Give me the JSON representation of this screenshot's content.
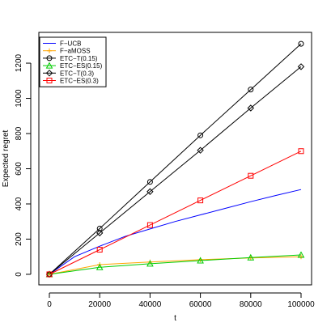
{
  "chart_data": {
    "type": "line",
    "xlabel": "t",
    "ylabel": "Expected regret",
    "xlim": [
      0,
      100000
    ],
    "ylim": [
      0,
      1300
    ],
    "x_ticks": [
      0,
      20000,
      40000,
      60000,
      80000,
      100000
    ],
    "y_ticks": [
      0,
      200,
      400,
      600,
      800,
      1000,
      1200
    ],
    "legend_position": "top-left",
    "series": [
      {
        "name": "F−UCB",
        "color": "#0000ff",
        "marker": "none",
        "x": [
          0,
          10000,
          20000,
          30000,
          40000,
          50000,
          60000,
          70000,
          80000,
          90000,
          100000
        ],
        "values": [
          0,
          100,
          160,
          215,
          258,
          300,
          338,
          375,
          413,
          448,
          482
        ]
      },
      {
        "name": "F−aMOSS",
        "color": "#ffa500",
        "marker": "plus",
        "x": [
          0,
          20000,
          40000,
          60000,
          80000,
          100000
        ],
        "values": [
          0,
          55,
          70,
          83,
          93,
          100
        ]
      },
      {
        "name": "ETC−T(0.15)",
        "color": "#000000",
        "marker": "circle",
        "x": [
          0,
          20000,
          40000,
          60000,
          80000,
          100000
        ],
        "values": [
          0,
          260,
          525,
          790,
          1050,
          1310
        ]
      },
      {
        "name": "ETC−ES(0.15)",
        "color": "#00cc00",
        "marker": "triangle",
        "x": [
          0,
          20000,
          40000,
          60000,
          80000,
          100000
        ],
        "values": [
          0,
          40,
          60,
          78,
          95,
          110
        ]
      },
      {
        "name": "ETC−T(0.3)",
        "color": "#000000",
        "marker": "diamond",
        "x": [
          0,
          20000,
          40000,
          60000,
          80000,
          100000
        ],
        "values": [
          0,
          235,
          470,
          705,
          945,
          1180
        ]
      },
      {
        "name": "ETC−ES(0.3)",
        "color": "#ff0000",
        "marker": "square",
        "x": [
          0,
          20000,
          40000,
          60000,
          80000,
          100000
        ],
        "values": [
          0,
          140,
          280,
          420,
          560,
          700
        ]
      }
    ]
  }
}
